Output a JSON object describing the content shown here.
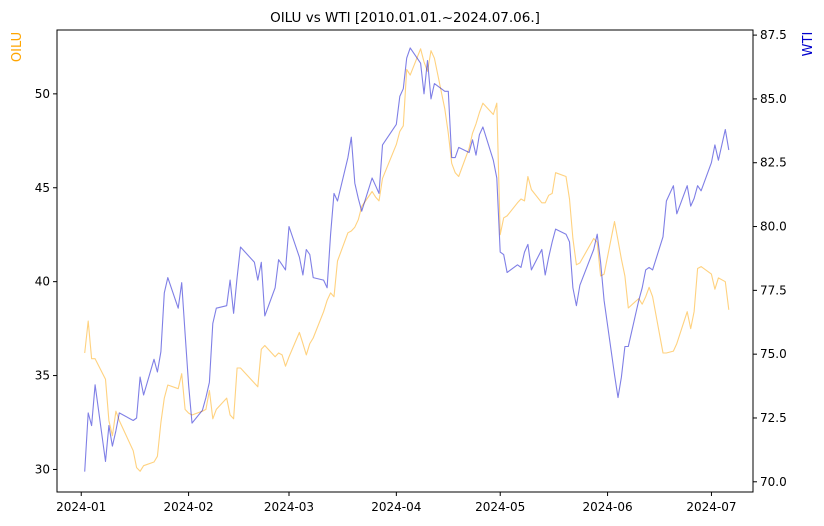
{
  "chart_data": {
    "type": "line",
    "title": "OILU vs WTI [2010.01.01.~2024.07.06.]",
    "ylabel": "OILU",
    "y2label": "WTI",
    "x_tick_labels": [
      "2024-01",
      "2024-02",
      "2024-03",
      "2024-04",
      "2024-05",
      "2024-06",
      "2024-07"
    ],
    "y_left_ticks": [
      30,
      35,
      40,
      45,
      50
    ],
    "y_right_ticks": [
      70.0,
      72.5,
      75.0,
      77.5,
      80.0,
      82.5,
      85.0,
      87.5
    ],
    "y_left_lim": [
      28.8,
      53.4
    ],
    "y_right_lim": [
      69.6,
      87.7
    ],
    "xlim": [
      "2023-12-25",
      "2024-07-13"
    ],
    "grid": false,
    "legend": "none",
    "series": [
      {
        "name": "OILU",
        "axis": "left",
        "color": "#ffa500",
        "points": [
          [
            "2024-01-02",
            36.2
          ],
          [
            "2024-01-03",
            37.9
          ],
          [
            "2024-01-04",
            35.9
          ],
          [
            "2024-01-05",
            35.9
          ],
          [
            "2024-01-08",
            34.8
          ],
          [
            "2024-01-09",
            32.6
          ],
          [
            "2024-01-10",
            31.8
          ],
          [
            "2024-01-11",
            33.1
          ],
          [
            "2024-01-12",
            32.6
          ],
          [
            "2024-01-16",
            31.0
          ],
          [
            "2024-01-17",
            30.1
          ],
          [
            "2024-01-18",
            29.9
          ],
          [
            "2024-01-19",
            30.2
          ],
          [
            "2024-01-22",
            30.4
          ],
          [
            "2024-01-23",
            30.7
          ],
          [
            "2024-01-24",
            32.5
          ],
          [
            "2024-01-25",
            33.8
          ],
          [
            "2024-01-26",
            34.5
          ],
          [
            "2024-01-29",
            34.3
          ],
          [
            "2024-01-30",
            35.1
          ],
          [
            "2024-01-31",
            33.2
          ],
          [
            "2024-02-01",
            33.0
          ],
          [
            "2024-02-02",
            32.9
          ],
          [
            "2024-02-05",
            33.1
          ],
          [
            "2024-02-06",
            33.2
          ],
          [
            "2024-02-07",
            34.2
          ],
          [
            "2024-02-08",
            32.7
          ],
          [
            "2024-02-09",
            33.2
          ],
          [
            "2024-02-12",
            33.8
          ],
          [
            "2024-02-13",
            32.9
          ],
          [
            "2024-02-14",
            32.7
          ],
          [
            "2024-02-15",
            35.4
          ],
          [
            "2024-02-16",
            35.4
          ],
          [
            "2024-02-20",
            34.6
          ],
          [
            "2024-02-21",
            34.4
          ],
          [
            "2024-02-22",
            36.4
          ],
          [
            "2024-02-23",
            36.6
          ],
          [
            "2024-02-26",
            36.0
          ],
          [
            "2024-02-27",
            36.2
          ],
          [
            "2024-02-28",
            36.1
          ],
          [
            "2024-02-29",
            35.5
          ],
          [
            "2024-03-01",
            36.0
          ],
          [
            "2024-03-04",
            37.3
          ],
          [
            "2024-03-05",
            36.7
          ],
          [
            "2024-03-06",
            36.1
          ],
          [
            "2024-03-07",
            36.7
          ],
          [
            "2024-03-08",
            37.0
          ],
          [
            "2024-03-11",
            38.4
          ],
          [
            "2024-03-12",
            39.0
          ],
          [
            "2024-03-13",
            39.4
          ],
          [
            "2024-03-14",
            39.2
          ],
          [
            "2024-03-15",
            41.1
          ],
          [
            "2024-03-18",
            42.6
          ],
          [
            "2024-03-19",
            42.7
          ],
          [
            "2024-03-20",
            42.9
          ],
          [
            "2024-03-21",
            43.3
          ],
          [
            "2024-03-22",
            44.0
          ],
          [
            "2024-03-25",
            44.8
          ],
          [
            "2024-03-26",
            44.5
          ],
          [
            "2024-03-27",
            44.3
          ],
          [
            "2024-03-28",
            45.5
          ],
          [
            "2024-04-01",
            47.3
          ],
          [
            "2024-04-02",
            48.0
          ],
          [
            "2024-04-03",
            48.3
          ],
          [
            "2024-04-04",
            51.3
          ],
          [
            "2024-04-05",
            51.0
          ],
          [
            "2024-04-08",
            52.4
          ],
          [
            "2024-04-09",
            51.7
          ],
          [
            "2024-04-10",
            51.2
          ],
          [
            "2024-04-11",
            52.3
          ],
          [
            "2024-04-12",
            51.9
          ],
          [
            "2024-04-15",
            49.2
          ],
          [
            "2024-04-16",
            47.9
          ],
          [
            "2024-04-17",
            46.3
          ],
          [
            "2024-04-18",
            45.8
          ],
          [
            "2024-04-19",
            45.6
          ],
          [
            "2024-04-22",
            47.1
          ],
          [
            "2024-04-23",
            47.9
          ],
          [
            "2024-04-24",
            48.4
          ],
          [
            "2024-04-25",
            49.0
          ],
          [
            "2024-04-26",
            49.5
          ],
          [
            "2024-04-29",
            48.9
          ],
          [
            "2024-04-30",
            49.5
          ],
          [
            "2024-05-01",
            42.5
          ],
          [
            "2024-05-02",
            43.4
          ],
          [
            "2024-05-03",
            43.5
          ],
          [
            "2024-05-06",
            44.2
          ],
          [
            "2024-05-07",
            44.4
          ],
          [
            "2024-05-08",
            44.3
          ],
          [
            "2024-05-09",
            45.6
          ],
          [
            "2024-05-10",
            44.9
          ],
          [
            "2024-05-13",
            44.2
          ],
          [
            "2024-05-14",
            44.2
          ],
          [
            "2024-05-15",
            44.6
          ],
          [
            "2024-05-16",
            44.7
          ],
          [
            "2024-05-17",
            45.8
          ],
          [
            "2024-05-20",
            45.6
          ],
          [
            "2024-05-21",
            44.4
          ],
          [
            "2024-05-22",
            42.3
          ],
          [
            "2024-05-23",
            40.9
          ],
          [
            "2024-05-24",
            41.0
          ],
          [
            "2024-05-28",
            42.3
          ],
          [
            "2024-05-29",
            42.1
          ],
          [
            "2024-05-30",
            40.3
          ],
          [
            "2024-05-31",
            40.4
          ],
          [
            "2024-06-03",
            43.2
          ],
          [
            "2024-06-04",
            42.2
          ],
          [
            "2024-06-05",
            41.2
          ],
          [
            "2024-06-06",
            40.3
          ],
          [
            "2024-06-07",
            38.6
          ],
          [
            "2024-06-10",
            39.1
          ],
          [
            "2024-06-11",
            38.8
          ],
          [
            "2024-06-12",
            39.2
          ],
          [
            "2024-06-13",
            39.7
          ],
          [
            "2024-06-14",
            39.2
          ],
          [
            "2024-06-17",
            36.2
          ],
          [
            "2024-06-18",
            36.2
          ],
          [
            "2024-06-20",
            36.3
          ],
          [
            "2024-06-21",
            36.7
          ],
          [
            "2024-06-24",
            38.4
          ],
          [
            "2024-06-25",
            37.5
          ],
          [
            "2024-06-26",
            38.4
          ],
          [
            "2024-06-27",
            40.7
          ],
          [
            "2024-06-28",
            40.8
          ],
          [
            "2024-07-01",
            40.4
          ],
          [
            "2024-07-02",
            39.6
          ],
          [
            "2024-07-03",
            40.2
          ],
          [
            "2024-07-05",
            40.0
          ],
          [
            "2024-07-06",
            38.5
          ]
        ]
      },
      {
        "name": "WTI",
        "axis": "right",
        "color": "#0000cd",
        "points": [
          [
            "2024-01-02",
            70.4
          ],
          [
            "2024-01-03",
            72.7
          ],
          [
            "2024-01-04",
            72.2
          ],
          [
            "2024-01-05",
            73.8
          ],
          [
            "2024-01-08",
            70.8
          ],
          [
            "2024-01-09",
            72.2
          ],
          [
            "2024-01-10",
            71.4
          ],
          [
            "2024-01-11",
            72.0
          ],
          [
            "2024-01-12",
            72.7
          ],
          [
            "2024-01-16",
            72.4
          ],
          [
            "2024-01-17",
            72.5
          ],
          [
            "2024-01-18",
            74.1
          ],
          [
            "2024-01-19",
            73.4
          ],
          [
            "2024-01-22",
            74.8
          ],
          [
            "2024-01-23",
            74.3
          ],
          [
            "2024-01-24",
            75.1
          ],
          [
            "2024-01-25",
            77.4
          ],
          [
            "2024-01-26",
            78.0
          ],
          [
            "2024-01-29",
            76.8
          ],
          [
            "2024-01-30",
            77.8
          ],
          [
            "2024-01-31",
            75.8
          ],
          [
            "2024-02-01",
            73.8
          ],
          [
            "2024-02-02",
            72.3
          ],
          [
            "2024-02-05",
            72.8
          ],
          [
            "2024-02-06",
            73.3
          ],
          [
            "2024-02-07",
            73.9
          ],
          [
            "2024-02-08",
            76.2
          ],
          [
            "2024-02-09",
            76.8
          ],
          [
            "2024-02-12",
            76.9
          ],
          [
            "2024-02-13",
            77.9
          ],
          [
            "2024-02-14",
            76.6
          ],
          [
            "2024-02-15",
            78.0
          ],
          [
            "2024-02-16",
            79.2
          ],
          [
            "2024-02-20",
            78.6
          ],
          [
            "2024-02-21",
            77.9
          ],
          [
            "2024-02-22",
            78.6
          ],
          [
            "2024-02-23",
            76.5
          ],
          [
            "2024-02-26",
            77.6
          ],
          [
            "2024-02-27",
            78.7
          ],
          [
            "2024-02-28",
            78.5
          ],
          [
            "2024-02-29",
            78.3
          ],
          [
            "2024-03-01",
            80.0
          ],
          [
            "2024-03-04",
            78.8
          ],
          [
            "2024-03-05",
            78.1
          ],
          [
            "2024-03-06",
            79.1
          ],
          [
            "2024-03-07",
            78.9
          ],
          [
            "2024-03-08",
            78.0
          ],
          [
            "2024-03-11",
            77.9
          ],
          [
            "2024-03-12",
            77.6
          ],
          [
            "2024-03-13",
            79.7
          ],
          [
            "2024-03-14",
            81.3
          ],
          [
            "2024-03-15",
            81.0
          ],
          [
            "2024-03-18",
            82.7
          ],
          [
            "2024-03-19",
            83.5
          ],
          [
            "2024-03-20",
            81.7
          ],
          [
            "2024-03-21",
            81.1
          ],
          [
            "2024-03-22",
            80.6
          ],
          [
            "2024-03-25",
            81.9
          ],
          [
            "2024-03-26",
            81.6
          ],
          [
            "2024-03-27",
            81.3
          ],
          [
            "2024-03-28",
            83.2
          ],
          [
            "2024-04-01",
            84.0
          ],
          [
            "2024-04-02",
            85.1
          ],
          [
            "2024-04-03",
            85.4
          ],
          [
            "2024-04-04",
            86.6
          ],
          [
            "2024-04-05",
            87.0
          ],
          [
            "2024-04-08",
            86.4
          ],
          [
            "2024-04-09",
            85.2
          ],
          [
            "2024-04-10",
            86.5
          ],
          [
            "2024-04-11",
            85.0
          ],
          [
            "2024-04-12",
            85.6
          ],
          [
            "2024-04-15",
            85.3
          ],
          [
            "2024-04-16",
            85.3
          ],
          [
            "2024-04-17",
            82.7
          ],
          [
            "2024-04-18",
            82.7
          ],
          [
            "2024-04-19",
            83.1
          ],
          [
            "2024-04-22",
            82.9
          ],
          [
            "2024-04-23",
            83.4
          ],
          [
            "2024-04-24",
            82.8
          ],
          [
            "2024-04-25",
            83.6
          ],
          [
            "2024-04-26",
            83.9
          ],
          [
            "2024-04-29",
            82.6
          ],
          [
            "2024-04-30",
            81.9
          ],
          [
            "2024-05-01",
            79.0
          ],
          [
            "2024-05-02",
            78.9
          ],
          [
            "2024-05-03",
            78.2
          ],
          [
            "2024-05-06",
            78.5
          ],
          [
            "2024-05-07",
            78.4
          ],
          [
            "2024-05-08",
            79.0
          ],
          [
            "2024-05-09",
            79.3
          ],
          [
            "2024-05-10",
            78.3
          ],
          [
            "2024-05-13",
            79.1
          ],
          [
            "2024-05-14",
            78.1
          ],
          [
            "2024-05-15",
            78.8
          ],
          [
            "2024-05-16",
            79.4
          ],
          [
            "2024-05-17",
            79.9
          ],
          [
            "2024-05-20",
            79.7
          ],
          [
            "2024-05-21",
            79.4
          ],
          [
            "2024-05-22",
            77.6
          ],
          [
            "2024-05-23",
            76.9
          ],
          [
            "2024-05-24",
            77.7
          ],
          [
            "2024-05-28",
            79.1
          ],
          [
            "2024-05-29",
            79.7
          ],
          [
            "2024-05-30",
            78.6
          ],
          [
            "2024-05-31",
            77.1
          ],
          [
            "2024-06-03",
            74.2
          ],
          [
            "2024-06-04",
            73.3
          ],
          [
            "2024-06-05",
            74.1
          ],
          [
            "2024-06-06",
            75.3
          ],
          [
            "2024-06-07",
            75.3
          ],
          [
            "2024-06-10",
            77.1
          ],
          [
            "2024-06-11",
            77.6
          ],
          [
            "2024-06-12",
            78.3
          ],
          [
            "2024-06-13",
            78.4
          ],
          [
            "2024-06-14",
            78.3
          ],
          [
            "2024-06-17",
            79.6
          ],
          [
            "2024-06-18",
            81.0
          ],
          [
            "2024-06-20",
            81.6
          ],
          [
            "2024-06-21",
            80.5
          ],
          [
            "2024-06-24",
            81.6
          ],
          [
            "2024-06-25",
            80.8
          ],
          [
            "2024-06-26",
            81.1
          ],
          [
            "2024-06-27",
            81.6
          ],
          [
            "2024-06-28",
            81.4
          ],
          [
            "2024-07-01",
            82.5
          ],
          [
            "2024-07-02",
            83.2
          ],
          [
            "2024-07-03",
            82.6
          ],
          [
            "2024-07-05",
            83.8
          ],
          [
            "2024-07-06",
            83.0
          ]
        ]
      }
    ]
  }
}
